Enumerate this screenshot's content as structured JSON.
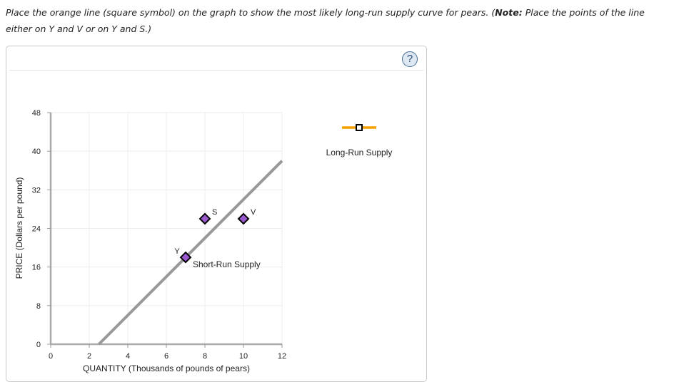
{
  "instructions": {
    "part1": "Place the orange line (square symbol) on the graph to show the most likely long-run supply curve for pears. (",
    "note_label": "Note:",
    "part2": " Place the points of the line either on Y and V or on Y and S.)"
  },
  "panel": {
    "help_icon": "?"
  },
  "legend": {
    "long_run_label": "Long-Run Supply",
    "long_run_color": "#f5a000"
  },
  "chart_data": {
    "type": "line",
    "title": "",
    "xlabel": "QUANTITY (Thousands of pounds of pears)",
    "ylabel": "PRICE (Dollars per pound)",
    "xlim": [
      0,
      12
    ],
    "ylim": [
      0,
      48
    ],
    "x_ticks": [
      "0",
      "2",
      "4",
      "6",
      "8",
      "10",
      "12"
    ],
    "y_ticks": [
      "0",
      "8",
      "16",
      "24",
      "32",
      "40",
      "48"
    ],
    "grid": true,
    "series": [
      {
        "name": "Short-Run Supply",
        "color": "#999999",
        "points": [
          [
            2.5,
            0
          ],
          [
            12,
            38
          ]
        ]
      }
    ],
    "points": [
      {
        "label": "S",
        "x": 8,
        "y": 26,
        "color": "#9b59d0"
      },
      {
        "label": "V",
        "x": 10,
        "y": 26,
        "color": "#9b59d0"
      },
      {
        "label": "Y",
        "x": 7,
        "y": 18,
        "color": "#9b59d0"
      }
    ],
    "legend": [
      {
        "name": "Long-Run Supply",
        "color": "#f5a000",
        "marker": "square",
        "placed": false
      }
    ]
  }
}
